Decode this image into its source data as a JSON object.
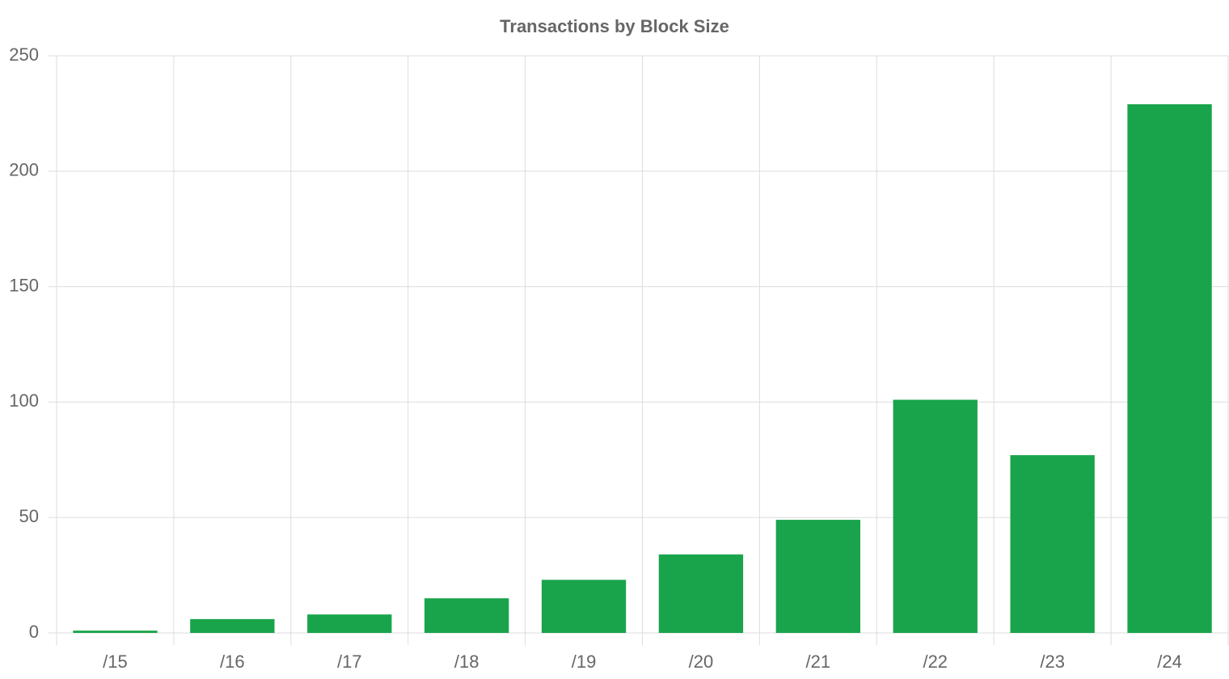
{
  "chart_data": {
    "type": "bar",
    "title": "Transactions by Block Size",
    "categories": [
      "/15",
      "/16",
      "/17",
      "/18",
      "/19",
      "/20",
      "/21",
      "/22",
      "/23",
      "/24"
    ],
    "values": [
      1,
      6,
      8,
      15,
      23,
      34,
      49,
      101,
      77,
      229
    ],
    "color": "#19a44b",
    "ylim": [
      0,
      250
    ],
    "yticks": [
      0,
      50,
      100,
      150,
      200,
      250
    ],
    "grid": true
  }
}
